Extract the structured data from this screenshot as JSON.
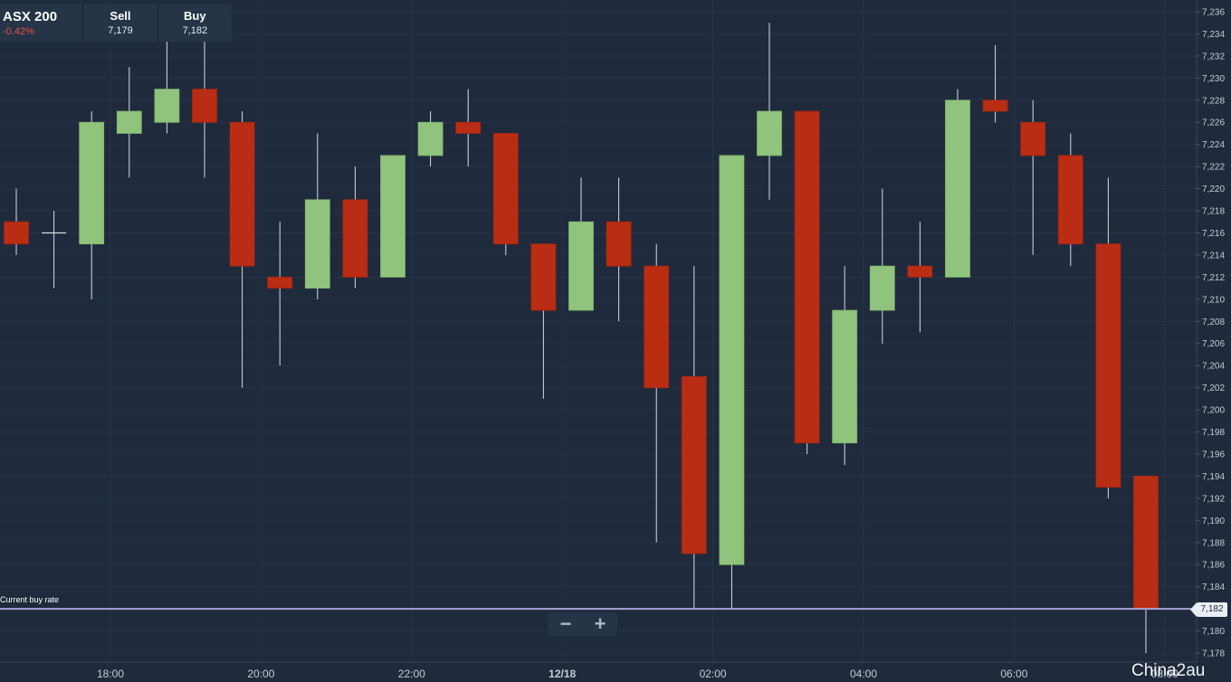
{
  "ticker": {
    "name": "ASX 200",
    "change": "-0.42%",
    "sell_label": "Sell",
    "sell_value": "7,179",
    "buy_label": "Buy",
    "buy_value": "7,182"
  },
  "current_rate_label": "Current buy rate",
  "current_rate_value": "7,182",
  "zoom": {
    "out_icon": "minus-icon",
    "in_icon": "plus-icon",
    "out_glyph": "−",
    "in_glyph": "+"
  },
  "watermark": "China2au",
  "colors": {
    "background": "#1f2b3c",
    "up": "#90c47d",
    "down": "#b92d14",
    "rate_line": "#a9a3d6"
  },
  "chart_data": {
    "type": "candlestick",
    "ylim": [
      7177,
      7237
    ],
    "yticks": [
      7178,
      7180,
      7182,
      7184,
      7186,
      7188,
      7190,
      7192,
      7194,
      7196,
      7198,
      7200,
      7202,
      7204,
      7206,
      7208,
      7210,
      7212,
      7214,
      7216,
      7218,
      7220,
      7222,
      7224,
      7226,
      7228,
      7230,
      7232,
      7234,
      7236
    ],
    "xticks": [
      {
        "label": "18:00",
        "index": 2.5
      },
      {
        "label": "20:00",
        "index": 6.5
      },
      {
        "label": "22:00",
        "index": 10.5
      },
      {
        "label": "12/18",
        "index": 14.5
      },
      {
        "label": "02:00",
        "index": 18.5
      },
      {
        "label": "04:00",
        "index": 22.5
      },
      {
        "label": "06:00",
        "index": 26.5
      },
      {
        "label": "08:00",
        "index": 30.5
      }
    ],
    "current_rate": 7182,
    "candles": [
      {
        "o": 7217,
        "h": 7220,
        "l": 7214,
        "c": 7215
      },
      {
        "o": 7216,
        "h": 7218,
        "l": 7211,
        "c": 7216
      },
      {
        "o": 7215,
        "h": 7227,
        "l": 7210,
        "c": 7226
      },
      {
        "o": 7225,
        "h": 7231,
        "l": 7221,
        "c": 7227
      },
      {
        "o": 7226,
        "h": 7234,
        "l": 7225,
        "c": 7229
      },
      {
        "o": 7229,
        "h": 7234,
        "l": 7221,
        "c": 7226
      },
      {
        "o": 7226,
        "h": 7227,
        "l": 7202,
        "c": 7213
      },
      {
        "o": 7212,
        "h": 7217,
        "l": 7204,
        "c": 7211
      },
      {
        "o": 7211,
        "h": 7225,
        "l": 7210,
        "c": 7219
      },
      {
        "o": 7219,
        "h": 7222,
        "l": 7211,
        "c": 7212
      },
      {
        "o": 7212,
        "h": 7223,
        "l": 7212,
        "c": 7223
      },
      {
        "o": 7223,
        "h": 7227,
        "l": 7222,
        "c": 7226
      },
      {
        "o": 7226,
        "h": 7229,
        "l": 7222,
        "c": 7225
      },
      {
        "o": 7225,
        "h": 7225,
        "l": 7214,
        "c": 7215
      },
      {
        "o": 7215,
        "h": 7215,
        "l": 7201,
        "c": 7209
      },
      {
        "o": 7209,
        "h": 7221,
        "l": 7209,
        "c": 7217
      },
      {
        "o": 7217,
        "h": 7221,
        "l": 7208,
        "c": 7213
      },
      {
        "o": 7213,
        "h": 7215,
        "l": 7188,
        "c": 7202
      },
      {
        "o": 7203,
        "h": 7213,
        "l": 7182,
        "c": 7187
      },
      {
        "o": 7186,
        "h": 7223,
        "l": 7182,
        "c": 7223
      },
      {
        "o": 7223,
        "h": 7235,
        "l": 7219,
        "c": 7227
      },
      {
        "o": 7227,
        "h": 7227,
        "l": 7196,
        "c": 7197
      },
      {
        "o": 7197,
        "h": 7213,
        "l": 7195,
        "c": 7209
      },
      {
        "o": 7209,
        "h": 7220,
        "l": 7206,
        "c": 7213
      },
      {
        "o": 7213,
        "h": 7217,
        "l": 7207,
        "c": 7212
      },
      {
        "o": 7212,
        "h": 7229,
        "l": 7212,
        "c": 7228
      },
      {
        "o": 7228,
        "h": 7233,
        "l": 7226,
        "c": 7227
      },
      {
        "o": 7226,
        "h": 7228,
        "l": 7214,
        "c": 7223
      },
      {
        "o": 7223,
        "h": 7225,
        "l": 7213,
        "c": 7215
      },
      {
        "o": 7215,
        "h": 7221,
        "l": 7192,
        "c": 7193
      },
      {
        "o": 7194,
        "h": 7194,
        "l": 7178,
        "c": 7182
      }
    ]
  }
}
